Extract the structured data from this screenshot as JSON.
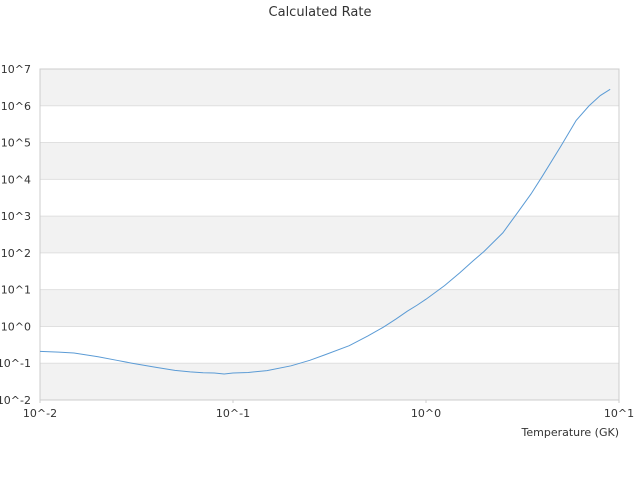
{
  "chart_data": {
    "type": "line",
    "title": "Calculated Rate",
    "xlabel": "Temperature (GK)",
    "ylabel": "",
    "x_scale": "log",
    "y_scale": "log",
    "xlim": [
      0.01,
      10
    ],
    "ylim": [
      0.01,
      10000000
    ],
    "x_ticks": [
      {
        "value": 0.01,
        "label": "10^-2"
      },
      {
        "value": 0.1,
        "label": "10^-1"
      },
      {
        "value": 1,
        "label": "10^0"
      },
      {
        "value": 10,
        "label": "10^1"
      }
    ],
    "y_ticks": [
      {
        "value": 0.01,
        "base": "10",
        "exp": "-2"
      },
      {
        "value": 0.1,
        "base": "10",
        "exp": "-1"
      },
      {
        "value": 1,
        "base": "10",
        "exp": "0"
      },
      {
        "value": 10,
        "base": "10",
        "exp": "1"
      },
      {
        "value": 100,
        "base": "10",
        "exp": "2"
      },
      {
        "value": 1000,
        "base": "10",
        "exp": "3"
      },
      {
        "value": 10000,
        "base": "10",
        "exp": "4"
      },
      {
        "value": 100000,
        "base": "10",
        "exp": "5"
      },
      {
        "value": 1000000,
        "base": "10",
        "exp": "6"
      },
      {
        "value": 10000000,
        "base": "10",
        "exp": "7"
      }
    ],
    "grid": "alternating horizontal bands",
    "legend": "none",
    "colors": {
      "line": "#5b9bd5",
      "band": "#f2f2f2",
      "axis": "#cccccc",
      "grid": "#e0e0e0"
    },
    "series": [
      {
        "x": [
          0.01,
          0.0125,
          0.015,
          0.02,
          0.025,
          0.03,
          0.04,
          0.05,
          0.06,
          0.07,
          0.08,
          0.09,
          0.1,
          0.12,
          0.15,
          0.2,
          0.25,
          0.3,
          0.4,
          0.5,
          0.6,
          0.7,
          0.8,
          0.9,
          1.0,
          1.25,
          1.5,
          1.75,
          2.0,
          2.5,
          3.0,
          3.5,
          4.0,
          5.0,
          6.0,
          7.0,
          8.0,
          9.0
        ],
        "y": [
          0.21,
          0.2,
          0.19,
          0.15,
          0.12,
          0.1,
          0.077,
          0.064,
          0.058,
          0.055,
          0.054,
          0.051,
          0.054,
          0.056,
          0.063,
          0.085,
          0.12,
          0.17,
          0.3,
          0.55,
          0.95,
          1.6,
          2.6,
          3.8,
          5.5,
          13,
          29,
          60,
          110,
          350,
          1300,
          4000,
          12000,
          80000,
          400000,
          1000000,
          1900000,
          2800000
        ]
      }
    ]
  }
}
